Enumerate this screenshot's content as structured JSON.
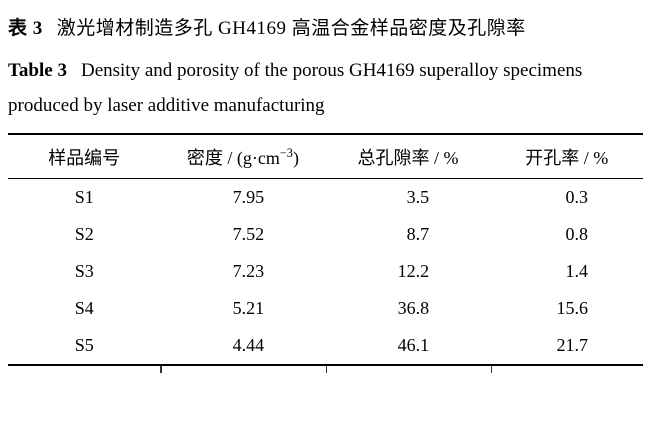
{
  "caption_cn": {
    "label": "表 3",
    "text": "激光增材制造多孔 GH4169 高温合金样品密度及孔隙率"
  },
  "caption_en": {
    "label": "Table 3",
    "text": "Density and porosity of the porous GH4169 superalloy specimens produced by laser additive manufacturing"
  },
  "table": {
    "headers": {
      "sample": "样品编号",
      "density_prefix": "密度 / (g·cm",
      "density_sup": "−3",
      "density_suffix": ")",
      "total_porosity": "总孔隙率 / %",
      "open_porosity": "开孔率 / %"
    },
    "rows": [
      {
        "id": "S1",
        "density": "7.95",
        "total_porosity": "3.5",
        "open_porosity": "0.3"
      },
      {
        "id": "S2",
        "density": "7.52",
        "total_porosity": "8.7",
        "open_porosity": "0.8"
      },
      {
        "id": "S3",
        "density": "7.23",
        "total_porosity": "12.2",
        "open_porosity": "1.4"
      },
      {
        "id": "S4",
        "density": "5.21",
        "total_porosity": "36.8",
        "open_porosity": "15.6"
      },
      {
        "id": "S5",
        "density": "4.44",
        "total_porosity": "46.1",
        "open_porosity": "21.7"
      }
    ]
  }
}
